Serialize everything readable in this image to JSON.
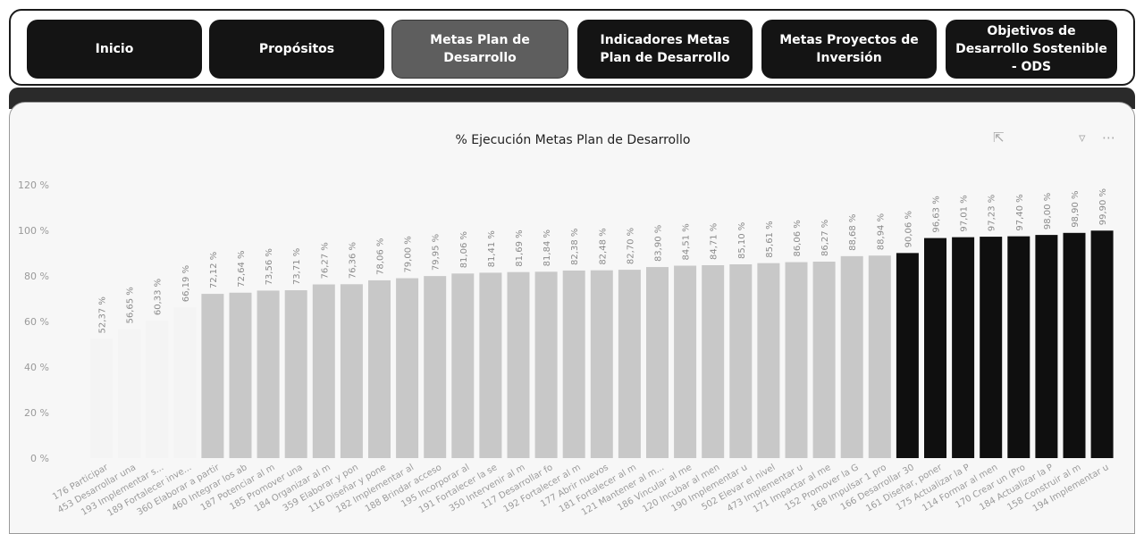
{
  "nav": {
    "items": [
      {
        "label": "Inicio",
        "active": false
      },
      {
        "label": "Propósitos",
        "active": false
      },
      {
        "label": "Metas Plan de Desarrollo",
        "active": true
      },
      {
        "label": "Indicadores Metas Plan de Desarrollo",
        "active": false
      },
      {
        "label": "Metas Proyectos de Inversión",
        "active": false
      },
      {
        "label": "Objetivos de Desarrollo Sostenible - ODS",
        "active": false
      }
    ]
  },
  "chart_data": {
    "type": "bar",
    "title": "% Ejecución Metas Plan de Desarrollo",
    "xlabel": "",
    "ylabel": "",
    "ylim": [
      0,
      120
    ],
    "yticks": [
      "0 %",
      "20 %",
      "40 %",
      "60 %",
      "80 %",
      "100 %",
      "120 %"
    ],
    "grid": false,
    "colors": {
      "light": "#c8c8c8",
      "dark": "#0f0f0f",
      "faint": "#f4f4f4"
    },
    "categories": [
      "176 Participar",
      "453 Desarrollar una",
      "193 Implementar s...",
      "189 Fortalecer inve...",
      "360 Elaborar a partir",
      "460 Integrar los ab",
      "187 Potenciar al m",
      "185 Promover una",
      "184 Organizar al m",
      "359 Elaborar y pon",
      "116 Diseñar y pone",
      "182 Implementar al",
      "188 Brindar acceso",
      "195 Incorporar al",
      "191 Fortalecer la se",
      "350 Intervenir al m",
      "117 Desarrollar fo",
      "192 Fortalecer al m",
      "177 Abrir nuevos",
      "181 Fortalecer al m",
      "121 Mantener al m...",
      "186 Vincular al me",
      "120 Incubar al men",
      "190 Implementar u",
      "502 Elevar el nivel",
      "473 Implementar u",
      "171 Impactar al me",
      "152 Promover la G",
      "168 Impulsar 1 pro",
      "166 Desarrollar 30",
      "161 Diseñar, poner",
      "175 Actualizar la P",
      "114 Formar al men",
      "170 Crear un (Pro",
      "184 Actualizar la P",
      "158 Construir al m",
      "194 Implementar u"
    ],
    "values": [
      52.37,
      56.65,
      60.33,
      66.19,
      72.12,
      72.64,
      73.56,
      73.71,
      76.27,
      76.36,
      78.06,
      79.0,
      79.95,
      81.06,
      81.41,
      81.69,
      81.84,
      82.38,
      82.48,
      82.7,
      83.9,
      84.51,
      84.71,
      85.1,
      85.61,
      86.06,
      86.27,
      88.68,
      88.94,
      90.06,
      96.63,
      97.01,
      97.23,
      97.4,
      98.0,
      98.9,
      99.9
    ],
    "data_labels": [
      "52,37 %",
      "56,65 %",
      "60,33 %",
      "66,19 %",
      "72,12 %",
      "72,64 %",
      "73,56 %",
      "73,71 %",
      "76,27 %",
      "76,36 %",
      "78,06 %",
      "79,00 %",
      "79,95 %",
      "81,06 %",
      "81,41 %",
      "81,69 %",
      "81,84 %",
      "82,38 %",
      "82,48 %",
      "82,70 %",
      "83,90 %",
      "84,51 %",
      "84,71 %",
      "85,10 %",
      "85,61 %",
      "86,06 %",
      "86,27 %",
      "88,68 %",
      "88,94 %",
      "90,06 %",
      "96,63 %",
      "97,01 %",
      "97,23 %",
      "97,40 %",
      "98,00 %",
      "98,90 %",
      "99,90 %"
    ],
    "tones": [
      "faint",
      "faint",
      "faint",
      "faint",
      "light",
      "light",
      "light",
      "light",
      "light",
      "light",
      "light",
      "light",
      "light",
      "light",
      "light",
      "light",
      "light",
      "light",
      "light",
      "light",
      "light",
      "light",
      "light",
      "light",
      "light",
      "light",
      "light",
      "light",
      "light",
      "dark",
      "dark",
      "dark",
      "dark",
      "dark",
      "dark",
      "dark",
      "dark"
    ]
  },
  "icons": {
    "focus": "focus-mode-icon",
    "filter": "filter-icon",
    "more": "more-options-icon"
  }
}
